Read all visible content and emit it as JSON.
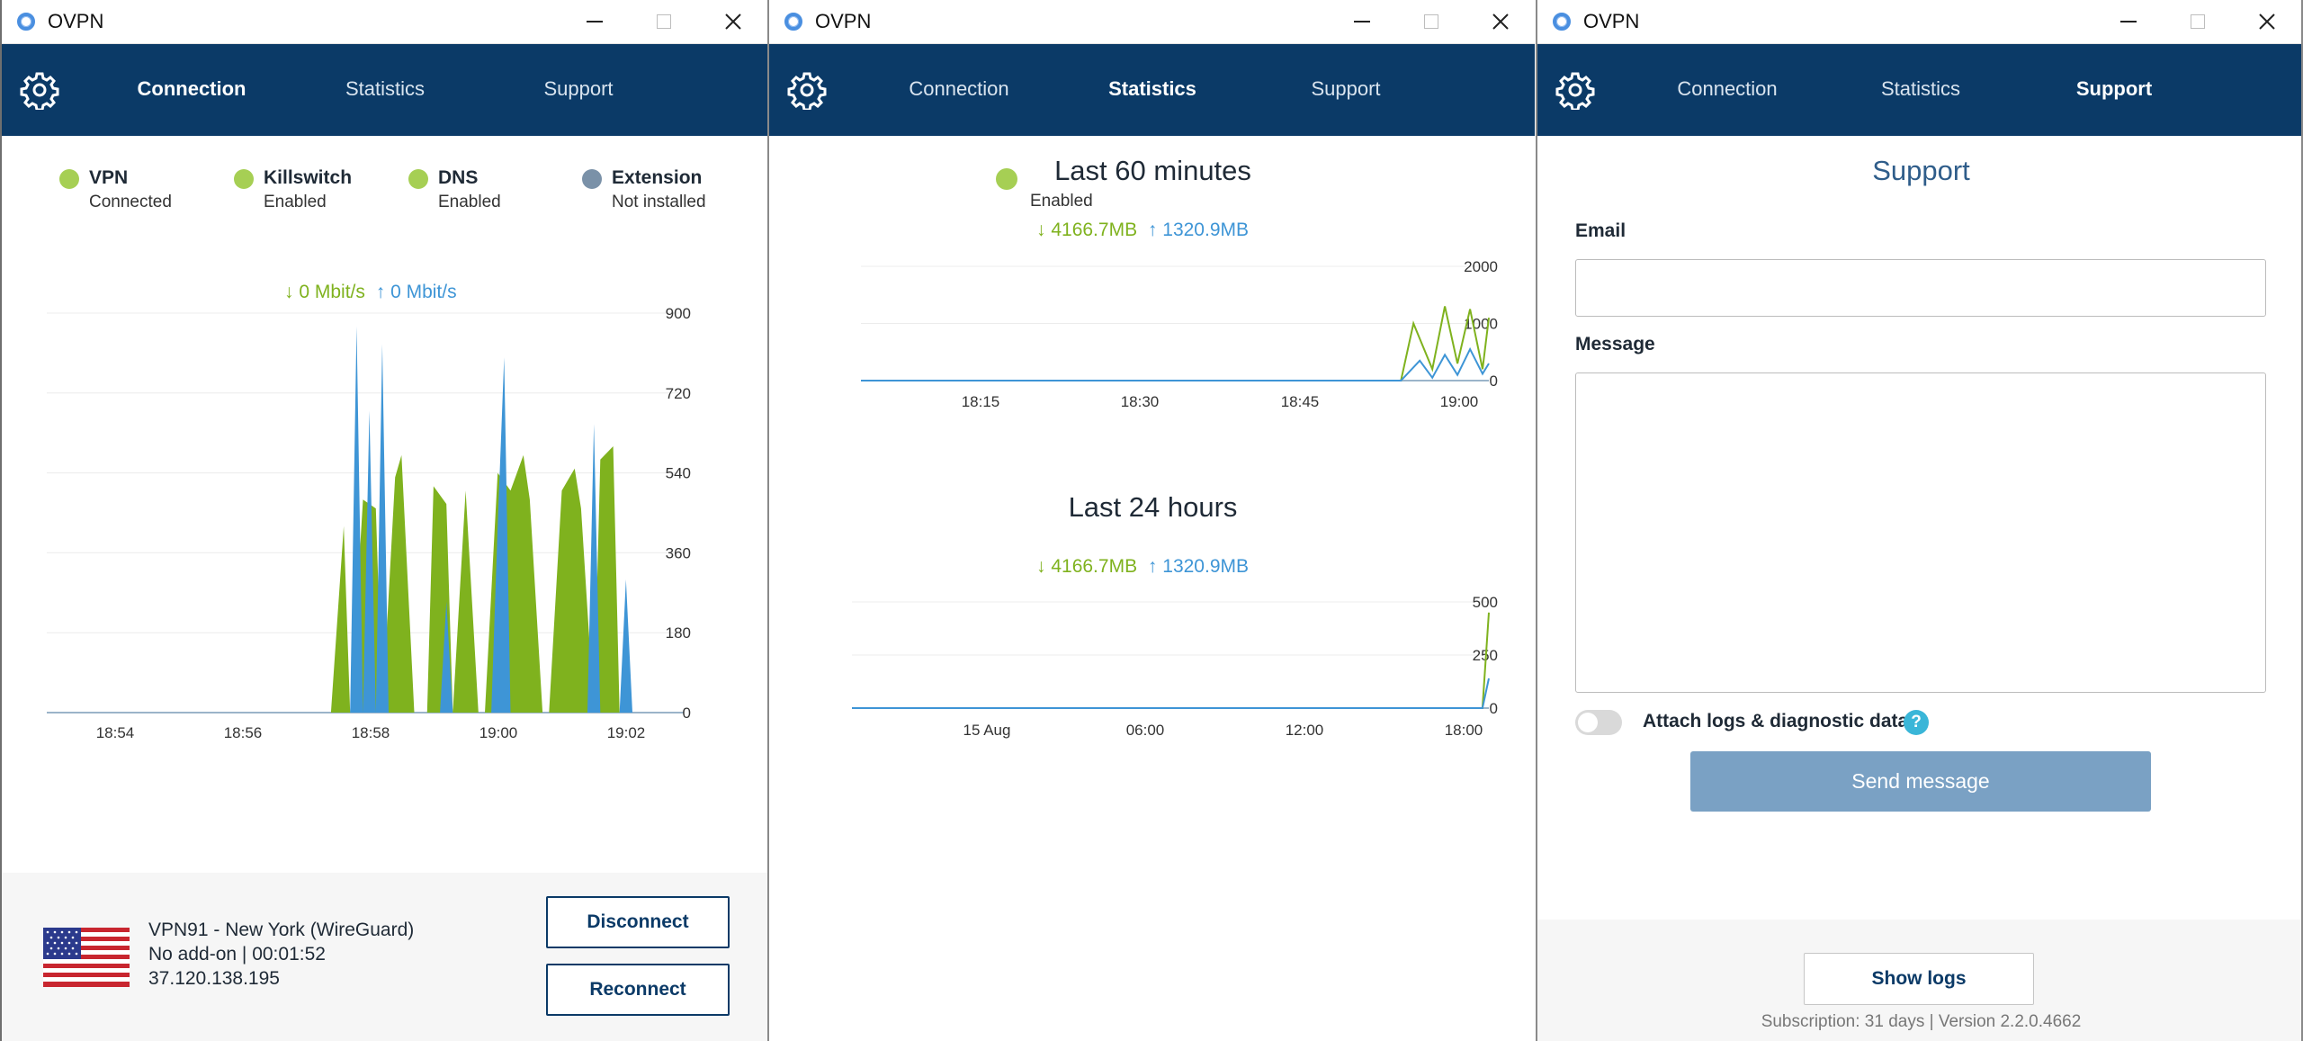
{
  "windows": [
    {
      "title": "OVPN",
      "tabs": [
        "Connection",
        "Statistics",
        "Support"
      ],
      "active_tab": "Connection"
    },
    {
      "title": "OVPN",
      "tabs": [
        "Connection",
        "Statistics",
        "Support"
      ],
      "active_tab": "Statistics"
    },
    {
      "title": "OVPN",
      "tabs": [
        "Connection",
        "Statistics",
        "Support"
      ],
      "active_tab": "Support"
    }
  ],
  "connection": {
    "statuses": [
      {
        "label": "VPN",
        "value": "Connected",
        "color": "#a6cf54"
      },
      {
        "label": "Killswitch",
        "value": "Enabled",
        "color": "#a6cf54"
      },
      {
        "label": "DNS",
        "value": "Enabled",
        "color": "#a6cf54"
      },
      {
        "label": "Extension",
        "value": "Not installed",
        "color": "#7a91a8"
      }
    ],
    "rate_down": "0 Mbit/s",
    "rate_up": "0 Mbit/s",
    "server_name": "VPN91 - New York (WireGuard)",
    "server_info": "No add-on | 00:01:52",
    "server_ip": "37.120.138.195",
    "disconnect_label": "Disconnect",
    "reconnect_label": "Reconnect"
  },
  "statistics": {
    "last60_title": "Last 60 minutes",
    "last60_status": "Enabled",
    "last60_down": "4166.7MB",
    "last60_up": "1320.9MB",
    "last24_title": "Last 24 hours",
    "last24_down": "4166.7MB",
    "last24_up": "1320.9MB"
  },
  "support": {
    "title": "Support",
    "email_label": "Email",
    "message_label": "Message",
    "attach_label": "Attach logs & diagnostic data",
    "help_icon": "?",
    "send_label": "Send message",
    "show_logs_label": "Show logs",
    "footer_text": "Subscription: 31 days   |   Version 2.2.0.4662"
  },
  "colors": {
    "nav": "#0b3a67",
    "download": "#7fb21e",
    "upload": "#3e95d6",
    "status_green": "#a6cf54",
    "status_gray": "#7a91a8"
  },
  "chart_data": [
    {
      "type": "area",
      "title": "",
      "x_ticks": [
        "18:54",
        "18:56",
        "18:58",
        "19:00",
        "19:02"
      ],
      "y_ticks": [
        0,
        180,
        360,
        540,
        720,
        900
      ],
      "ylim": [
        0,
        900
      ],
      "series": [
        {
          "values_x": [
            0.0,
            0.45,
            0.47,
            0.48,
            0.5,
            0.52,
            0.53,
            0.55,
            0.56,
            0.58,
            0.6,
            0.61,
            0.63,
            0.64,
            0.66,
            0.68,
            0.69,
            0.71,
            0.73,
            0.75,
            0.76,
            0.78,
            0.79,
            0.81,
            0.83,
            0.84,
            0.86,
            0.87,
            0.89,
            0.9,
            0.92,
            0.93,
            0.95,
            1.0
          ],
          "values": [
            0,
            0,
            420,
            0,
            480,
            460,
            0,
            530,
            580,
            0,
            0,
            510,
            470,
            0,
            500,
            0,
            0,
            540,
            500,
            580,
            480,
            0,
            0,
            500,
            550,
            460,
            0,
            570,
            600,
            0,
            0,
            0,
            0,
            0
          ]
        },
        {
          "values_x": [
            0.0,
            0.48,
            0.49,
            0.5,
            0.51,
            0.52,
            0.53,
            0.54,
            0.55,
            0.62,
            0.63,
            0.64,
            0.7,
            0.71,
            0.72,
            0.73,
            0.74,
            0.85,
            0.86,
            0.87,
            0.88,
            0.9,
            0.91,
            0.92,
            0.93,
            1.0
          ],
          "values": [
            0,
            0,
            870,
            0,
            680,
            0,
            830,
            0,
            0,
            0,
            250,
            0,
            0,
            420,
            800,
            0,
            0,
            0,
            650,
            0,
            0,
            0,
            300,
            0,
            0,
            0
          ]
        }
      ]
    },
    {
      "type": "line",
      "title": "Last 60 minutes",
      "x_ticks": [
        "18:15",
        "18:30",
        "18:45",
        "19:00"
      ],
      "y_ticks": [
        0,
        1000,
        2000
      ],
      "ylim": [
        0,
        2000
      ],
      "series": [
        {
          "values_x": [
            0,
            0.86,
            0.88,
            0.91,
            0.93,
            0.95,
            0.97,
            0.99,
            1.0
          ],
          "values": [
            0,
            0,
            1000,
            200,
            1300,
            300,
            1250,
            200,
            1100
          ]
        },
        {
          "values_x": [
            0,
            0.86,
            0.89,
            0.91,
            0.93,
            0.95,
            0.97,
            0.99,
            1.0
          ],
          "values": [
            0,
            0,
            350,
            50,
            450,
            100,
            550,
            120,
            300
          ]
        }
      ]
    },
    {
      "type": "line",
      "title": "Last 24 hours",
      "x_ticks": [
        "15 Aug",
        "06:00",
        "12:00",
        "18:00"
      ],
      "y_ticks": [
        0,
        250,
        500
      ],
      "ylim": [
        0,
        500
      ],
      "series": [
        {
          "values_x": [
            0,
            0.99,
            1.0
          ],
          "values": [
            0,
            0,
            450
          ]
        },
        {
          "values_x": [
            0,
            0.99,
            1.0
          ],
          "values": [
            0,
            0,
            140
          ]
        }
      ]
    }
  ]
}
